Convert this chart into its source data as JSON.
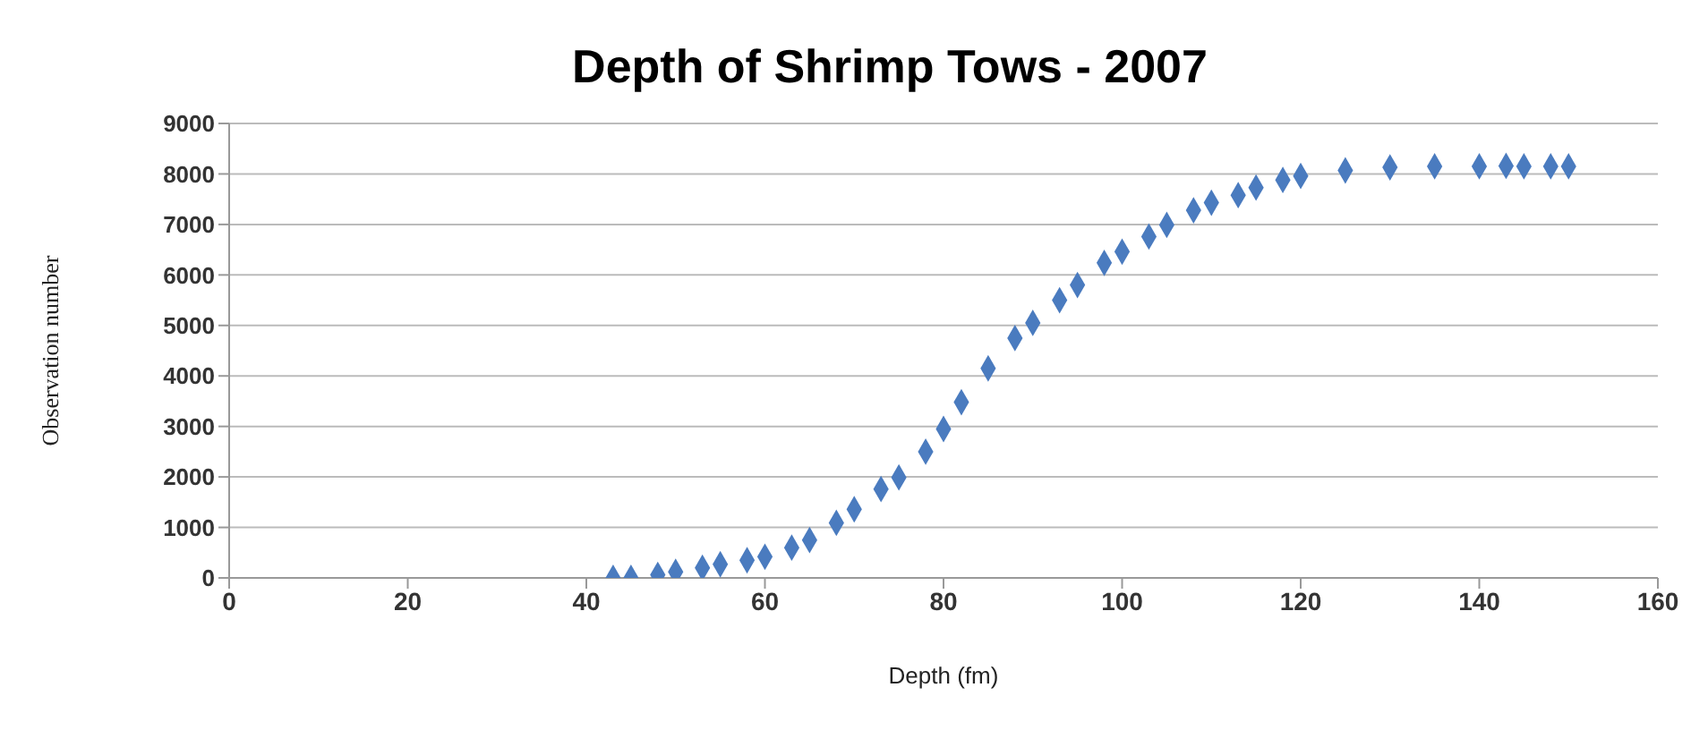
{
  "chart_data": {
    "type": "scatter",
    "title": "Depth of Shrimp Tows - 2007",
    "xlabel": "Depth (fm)",
    "ylabel": "Observation number",
    "xlim": [
      0,
      160
    ],
    "xticks": [
      0,
      20,
      40,
      60,
      80,
      100,
      120,
      140,
      160
    ],
    "ylim": [
      0,
      9000
    ],
    "yticks": [
      0,
      1000,
      2000,
      3000,
      4000,
      5000,
      6000,
      7000,
      8000,
      9000
    ],
    "grid": "y",
    "marker": "diamond",
    "series": [
      {
        "color": "#4a7bbf",
        "x": [
          43,
          45,
          48,
          50,
          53,
          55,
          58,
          60,
          63,
          65,
          68,
          70,
          73,
          75,
          78,
          80,
          82,
          85,
          88,
          90,
          93,
          95,
          98,
          100,
          103,
          105,
          108,
          110,
          113,
          115,
          118,
          120,
          125,
          130,
          135,
          140,
          143,
          145,
          148,
          150
        ],
        "values": [
          0,
          0,
          60,
          120,
          200,
          270,
          350,
          420,
          600,
          750,
          1090,
          1360,
          1760,
          1990,
          2500,
          2950,
          3480,
          4150,
          4750,
          5050,
          5500,
          5800,
          6240,
          6460,
          6760,
          6990,
          7280,
          7430,
          7580,
          7730,
          7880,
          7960,
          8070,
          8130,
          8150,
          8150,
          8160,
          8150,
          8150,
          8150
        ]
      }
    ]
  }
}
